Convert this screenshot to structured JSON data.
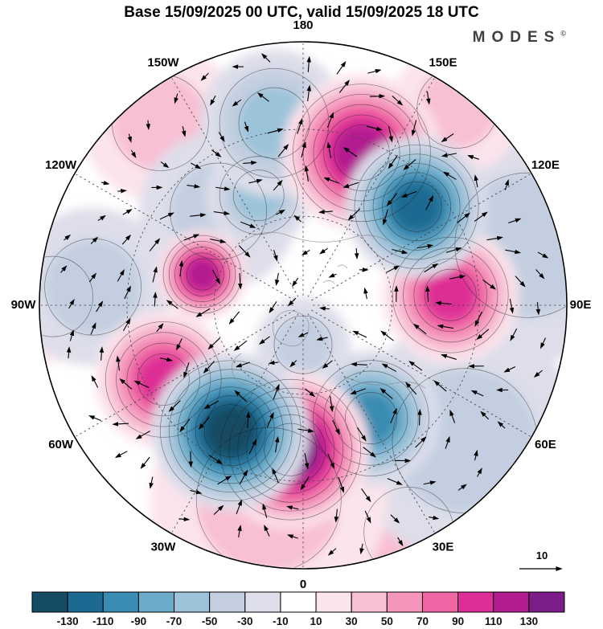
{
  "header": {
    "title": "Base 15/09/2025 00 UTC, valid 15/09/2025 18 UTC",
    "logo_text": "MODES",
    "logo_mark": "©"
  },
  "chart_data": {
    "type": "heatmap",
    "projection": "north_polar_stereographic",
    "title": "Base 15/09/2025 00 UTC, valid 15/09/2025 18 UTC",
    "longitude_labels": [
      {
        "label": "180",
        "az": 0
      },
      {
        "label": "150E",
        "az": 30
      },
      {
        "label": "120E",
        "az": 60
      },
      {
        "label": "90E",
        "az": 90
      },
      {
        "label": "60E",
        "az": 120
      },
      {
        "label": "30E",
        "az": 150
      },
      {
        "label": "0",
        "az": 180
      },
      {
        "label": "30W",
        "az": 210
      },
      {
        "label": "60W",
        "az": 240
      },
      {
        "label": "90W",
        "az": 270
      },
      {
        "label": "120W",
        "az": 300
      },
      {
        "label": "150W",
        "az": 330
      }
    ],
    "graticule": {
      "lat_circle_fractions": [
        0.338,
        0.668
      ],
      "lon_step_deg": 30
    },
    "colorbar": {
      "boundaries": [
        -130,
        -110,
        -90,
        -70,
        -50,
        -30,
        -10,
        10,
        30,
        50,
        70,
        90,
        110,
        130
      ],
      "colors": [
        "#134c64",
        "#1c6a92",
        "#3b8cb2",
        "#6bacca",
        "#9bc3d9",
        "#c3cfe0",
        "#dedeea",
        "#ffffff",
        "#fbe4ec",
        "#f8c0d4",
        "#f495bb",
        "#ef64a3",
        "#dd2d96",
        "#b21d90",
        "#7c1d89"
      ]
    },
    "reference_vector": {
      "label": "10"
    },
    "anomaly_centers": [
      {
        "az": 21,
        "r": 0.62,
        "peak": 110,
        "size": 0.3
      },
      {
        "az": 38,
        "r": 0.95,
        "peak": 45,
        "size": 0.25
      },
      {
        "az": 86,
        "r": 0.56,
        "peak": 90,
        "size": 0.26
      },
      {
        "az": 155,
        "r": 0.95,
        "peak": 35,
        "size": 0.28
      },
      {
        "az": 185,
        "r": 0.55,
        "peak": 131,
        "size": 0.3
      },
      {
        "az": 190,
        "r": 0.75,
        "peak": 45,
        "size": 0.45
      },
      {
        "az": 242,
        "r": 0.6,
        "peak": 90,
        "size": 0.26
      },
      {
        "az": 272,
        "r": 0.95,
        "peak": 40,
        "size": 0.25
      },
      {
        "az": 287,
        "r": 0.4,
        "peak": 110,
        "size": 0.17
      },
      {
        "az": 322,
        "r": 0.88,
        "peak": 40,
        "size": 0.3
      },
      {
        "az": 49,
        "r": 0.57,
        "peak": -115,
        "size": 0.27
      },
      {
        "az": 75,
        "r": 0.88,
        "peak": -35,
        "size": 0.45
      },
      {
        "az": 130,
        "r": 0.8,
        "peak": -35,
        "size": 0.45
      },
      {
        "az": 149,
        "r": 0.5,
        "peak": -100,
        "size": 0.26
      },
      {
        "az": 180,
        "r": 0.15,
        "peak": -40,
        "size": 0.18
      },
      {
        "az": 210,
        "r": 0.55,
        "peak": -135,
        "size": 0.3
      },
      {
        "az": 275,
        "r": 0.8,
        "peak": -40,
        "size": 0.3
      },
      {
        "az": 318,
        "r": 0.48,
        "peak": -45,
        "size": 0.3
      },
      {
        "az": 338,
        "r": 0.45,
        "peak": -55,
        "size": 0.2
      },
      {
        "az": 351,
        "r": 0.7,
        "peak": -60,
        "size": 0.28
      }
    ]
  }
}
